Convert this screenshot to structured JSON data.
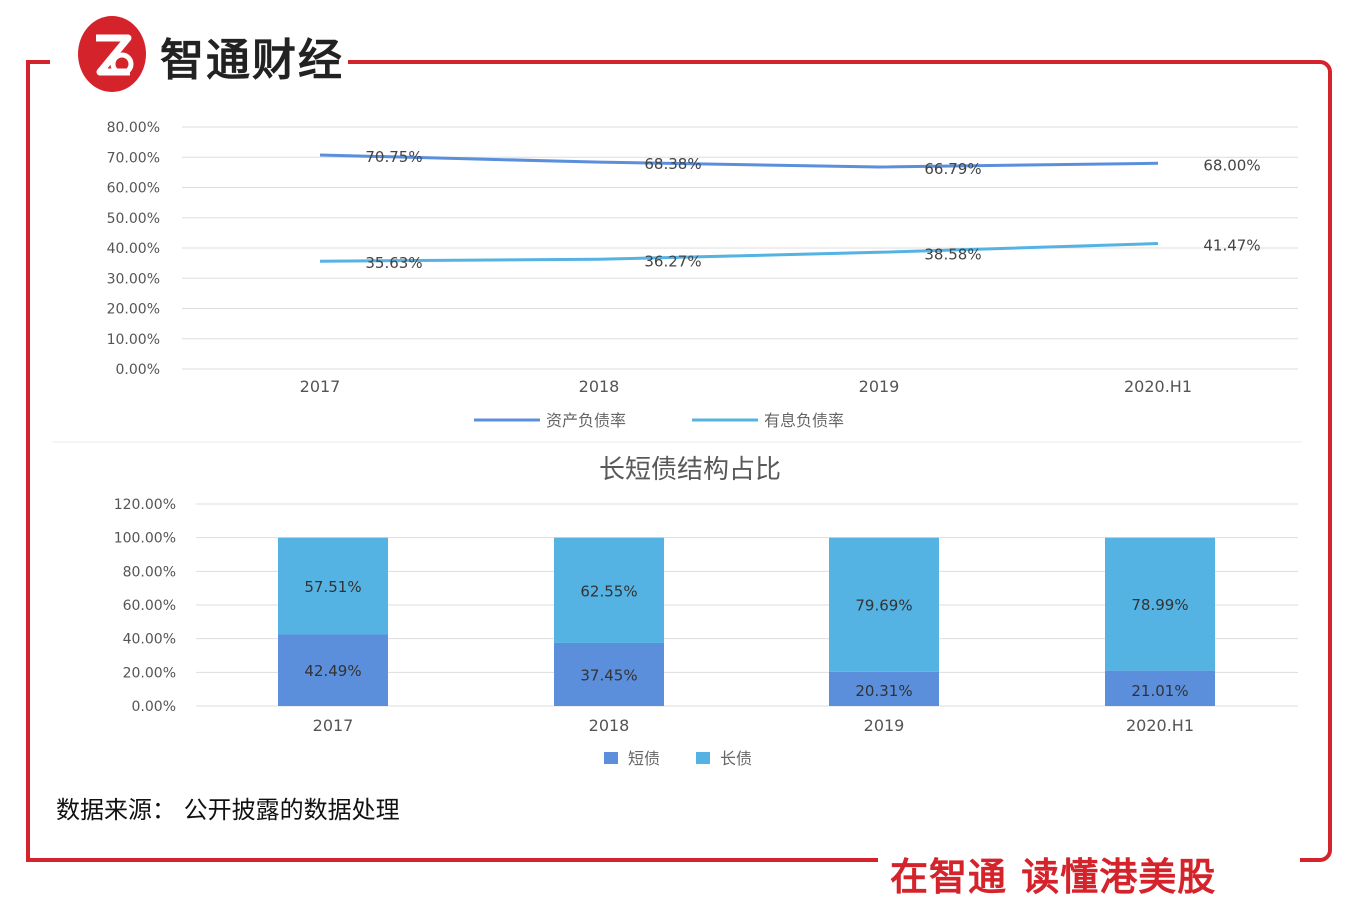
{
  "brand": {
    "name": "智通财经",
    "logo_glyph": "Z"
  },
  "colors": {
    "frame": "#d5232b",
    "series_dark": "#5b8fdc",
    "series_light": "#55b3e3",
    "axis_text": "#555555"
  },
  "source_note": "数据来源： 公开披露的数据处理",
  "slogan": "在智通 读懂港美股",
  "chart_data": [
    {
      "type": "line",
      "title": "",
      "categories": [
        "2017",
        "2018",
        "2019",
        "2020.H1"
      ],
      "yticks": [
        "0.00%",
        "10.00%",
        "20.00%",
        "30.00%",
        "40.00%",
        "50.00%",
        "60.00%",
        "70.00%",
        "80.00%"
      ],
      "ylim": [
        0,
        80
      ],
      "grid": true,
      "legend_position": "bottom",
      "series": [
        {
          "name": "资产负债率",
          "values": [
            70.75,
            68.38,
            66.79,
            68.0
          ],
          "labels": [
            "70.75%",
            "68.38%",
            "66.79%",
            "68.00%"
          ]
        },
        {
          "name": "有息负债率",
          "values": [
            35.63,
            36.27,
            38.58,
            41.47
          ],
          "labels": [
            "35.63%",
            "36.27%",
            "38.58%",
            "41.47%"
          ]
        }
      ]
    },
    {
      "type": "bar",
      "stacked": true,
      "title": "长短债结构占比",
      "categories": [
        "2017",
        "2018",
        "2019",
        "2020.H1"
      ],
      "yticks": [
        "0.00%",
        "20.00%",
        "40.00%",
        "60.00%",
        "80.00%",
        "100.00%",
        "120.00%"
      ],
      "ylim": [
        0,
        120
      ],
      "grid": true,
      "legend_position": "bottom",
      "series": [
        {
          "name": "短债",
          "values": [
            42.49,
            37.45,
            20.31,
            21.01
          ],
          "labels": [
            "42.49%",
            "37.45%",
            "20.31%",
            "21.01%"
          ]
        },
        {
          "name": "长债",
          "values": [
            57.51,
            62.55,
            79.69,
            78.99
          ],
          "labels": [
            "57.51%",
            "62.55%",
            "79.69%",
            "78.99%"
          ]
        }
      ]
    }
  ]
}
